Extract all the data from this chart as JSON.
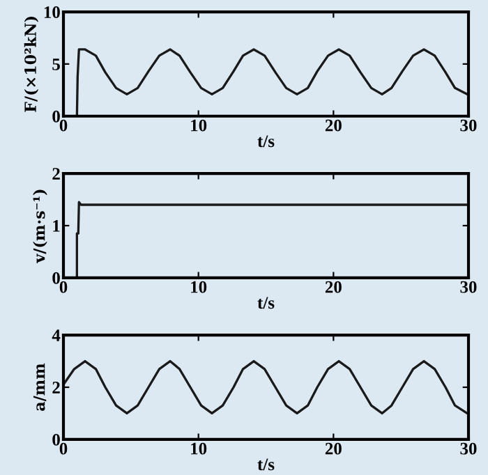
{
  "chart_data": [
    {
      "type": "line",
      "ylabel": "F/(×10²kN)",
      "xlabel": "t/s",
      "xlim": [
        0,
        30
      ],
      "ylim": [
        0,
        10
      ],
      "xticks": [
        0,
        10,
        20,
        30
      ],
      "yticks": [
        0,
        5,
        10
      ],
      "grid": false,
      "legend": false,
      "marker": "none",
      "line_style": "solid",
      "series": [
        {
          "color": "#1a1a1a",
          "x": [
            0,
            1.0,
            1.05,
            1.15,
            1.6,
            2.4,
            3.1,
            3.9,
            4.7,
            5.5,
            6.3,
            7.1,
            7.9,
            8.6,
            9.4,
            10.2,
            11.0,
            11.8,
            12.6,
            13.3,
            14.1,
            14.9,
            15.7,
            16.5,
            17.3,
            18.1,
            18.8,
            19.6,
            20.4,
            21.2,
            22.0,
            22.8,
            23.6,
            24.3,
            25.1,
            25.9,
            26.7,
            27.5,
            28.3,
            29.0,
            29.9,
            30
          ],
          "values": [
            0,
            0,
            3.8,
            6.4,
            6.4,
            5.8,
            4.2,
            2.7,
            2.1,
            2.7,
            4.3,
            5.8,
            6.4,
            5.8,
            4.2,
            2.7,
            2.1,
            2.7,
            4.3,
            5.8,
            6.4,
            5.8,
            4.2,
            2.7,
            2.1,
            2.7,
            4.3,
            5.8,
            6.4,
            5.8,
            4.2,
            2.7,
            2.1,
            2.7,
            4.3,
            5.8,
            6.4,
            5.8,
            4.2,
            2.7,
            2.1,
            2.1
          ]
        }
      ]
    },
    {
      "type": "line",
      "ylabel": "v/(m·s⁻¹)",
      "xlabel": "t/s",
      "xlim": [
        0,
        30
      ],
      "ylim": [
        0,
        2
      ],
      "xticks": [
        0,
        10,
        20,
        30
      ],
      "yticks": [
        0,
        1,
        2
      ],
      "grid": false,
      "legend": false,
      "marker": "none",
      "line_style": "solid",
      "series": [
        {
          "color": "#1a1a1a",
          "x": [
            0,
            1.0,
            1.0,
            1.1,
            1.15,
            1.3,
            30
          ],
          "values": [
            0,
            0,
            0.85,
            0.85,
            1.45,
            1.4,
            1.4
          ]
        }
      ]
    },
    {
      "type": "line",
      "ylabel": "a/mm",
      "xlabel": "t/s",
      "xlim": [
        0,
        30
      ],
      "ylim": [
        0,
        4
      ],
      "xticks": [
        0,
        10,
        20,
        30
      ],
      "yticks": [
        0,
        2,
        4
      ],
      "grid": false,
      "legend": false,
      "marker": "none",
      "line_style": "solid",
      "series": [
        {
          "color": "#1a1a1a",
          "x": [
            0,
            0.8,
            1.6,
            2.4,
            3.1,
            3.9,
            4.7,
            5.5,
            6.3,
            7.1,
            7.9,
            8.6,
            9.4,
            10.2,
            11.0,
            11.8,
            12.6,
            13.3,
            14.1,
            14.9,
            15.7,
            16.5,
            17.3,
            18.1,
            18.8,
            19.6,
            20.4,
            21.2,
            22.0,
            22.8,
            23.6,
            24.3,
            25.1,
            25.9,
            26.7,
            27.5,
            28.3,
            29.0,
            29.9,
            30
          ],
          "values": [
            2.1,
            2.7,
            3.0,
            2.7,
            2.0,
            1.3,
            1.0,
            1.3,
            2.0,
            2.7,
            3.0,
            2.7,
            2.0,
            1.3,
            1.0,
            1.3,
            2.0,
            2.7,
            3.0,
            2.7,
            2.0,
            1.3,
            1.0,
            1.3,
            2.0,
            2.7,
            3.0,
            2.7,
            2.0,
            1.3,
            1.0,
            1.3,
            2.0,
            2.7,
            3.0,
            2.7,
            2.0,
            1.3,
            1.0,
            1.0
          ]
        }
      ]
    }
  ]
}
